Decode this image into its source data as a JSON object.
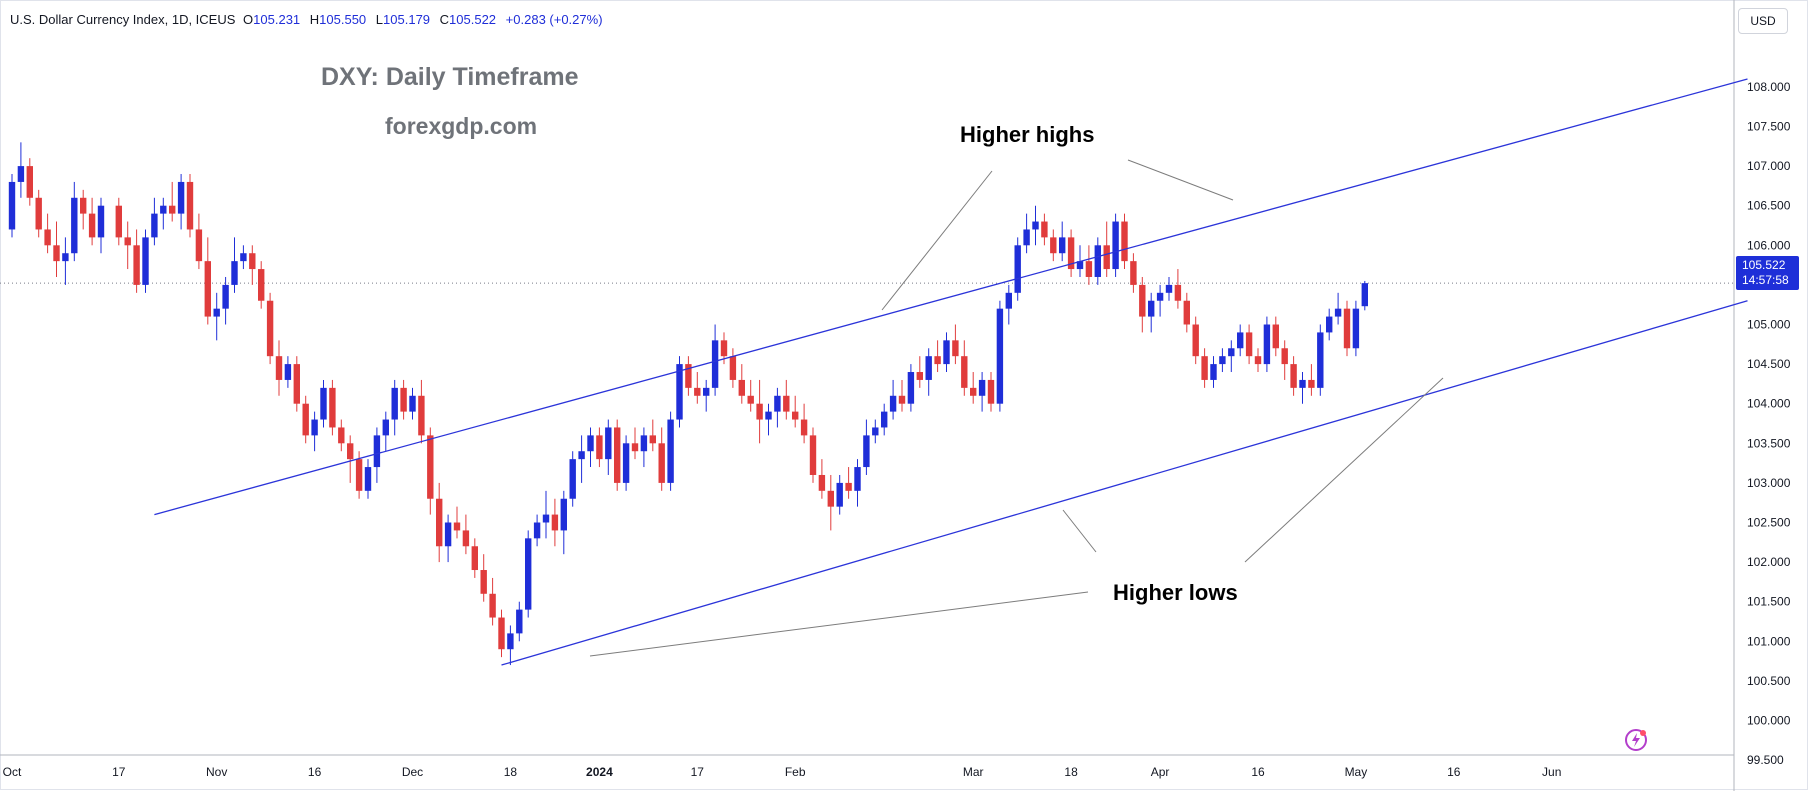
{
  "legend": {
    "symbol": "U.S. Dollar Currency Index, 1D, ICEUS",
    "open_key": "O",
    "open": "105.231",
    "high_key": "H",
    "high": "105.550",
    "low_key": "L",
    "low": "105.179",
    "close_key": "C",
    "close": "105.522",
    "change": "+0.283 (+0.27%)"
  },
  "currency": "USD",
  "watermark": {
    "title": "DXY: Daily Timeframe",
    "site": "forexgdp.com"
  },
  "annotations": {
    "higher_highs": "Higher highs",
    "higher_lows": "Higher lows"
  },
  "last_price": {
    "price": "105.522",
    "countdown": "14:57:58"
  },
  "icons": {
    "flash": "lightning-bolt-icon"
  },
  "colors": {
    "up": "#1f2ed8",
    "down": "#e03c3c",
    "trendline": "#2b34d9",
    "callout": "#7c7c7c",
    "grid": "#e0e3eb"
  },
  "chart_data": {
    "type": "candlestick",
    "symbol": "DXY",
    "timeframe": "1D",
    "ylim": [
      99.3,
      108.5
    ],
    "y_ticks": [
      "99.500",
      "100.000",
      "100.500",
      "101.000",
      "101.500",
      "102.000",
      "102.500",
      "103.000",
      "103.500",
      "104.000",
      "104.500",
      "105.000",
      "105.500",
      "106.000",
      "106.500",
      "107.000",
      "107.500",
      "108.000"
    ],
    "x_ticks": [
      {
        "label": "Oct",
        "index": 0
      },
      {
        "label": "17",
        "index": 12
      },
      {
        "label": "Nov",
        "index": 23
      },
      {
        "label": "16",
        "index": 34
      },
      {
        "label": "Dec",
        "index": 45
      },
      {
        "label": "18",
        "index": 56
      },
      {
        "label": "2024",
        "index": 66
      },
      {
        "label": "17",
        "index": 77
      },
      {
        "label": "Feb",
        "index": 88
      },
      {
        "label": "Mar",
        "index": 108
      },
      {
        "label": "18",
        "index": 119
      },
      {
        "label": "Apr",
        "index": 129
      },
      {
        "label": "16",
        "index": 140
      },
      {
        "label": "May",
        "index": 151
      },
      {
        "label": "16",
        "index": 162
      },
      {
        "label": "Jun",
        "index": 173
      }
    ],
    "n_slots": 195,
    "candles": [
      [
        106.2,
        106.9,
        106.1,
        106.8
      ],
      [
        106.8,
        107.3,
        106.6,
        107.0
      ],
      [
        107.0,
        107.1,
        106.5,
        106.6
      ],
      [
        106.6,
        106.7,
        106.1,
        106.2
      ],
      [
        106.2,
        106.4,
        105.9,
        106.0
      ],
      [
        106.0,
        106.3,
        105.6,
        105.8
      ],
      [
        105.8,
        106.1,
        105.5,
        105.9
      ],
      [
        105.9,
        106.8,
        105.8,
        106.6
      ],
      [
        106.6,
        106.7,
        106.2,
        106.4
      ],
      [
        106.4,
        106.6,
        106.0,
        106.1
      ],
      [
        106.1,
        106.6,
        105.9,
        106.5
      ],
      [
        106.5,
        106.6,
        106.0,
        106.1
      ],
      [
        106.1,
        106.3,
        105.7,
        106.0
      ],
      [
        106.0,
        106.2,
        105.4,
        105.5
      ],
      [
        105.5,
        106.2,
        105.4,
        106.1
      ],
      [
        106.1,
        106.6,
        106.0,
        106.4
      ],
      [
        106.4,
        106.6,
        106.2,
        106.5
      ],
      [
        106.5,
        106.8,
        106.3,
        106.4
      ],
      [
        106.4,
        106.9,
        106.2,
        106.8
      ],
      [
        106.8,
        106.9,
        106.1,
        106.2
      ],
      [
        106.2,
        106.4,
        105.7,
        105.8
      ],
      [
        105.8,
        106.1,
        105.0,
        105.1
      ],
      [
        105.1,
        105.4,
        104.8,
        105.2
      ],
      [
        105.2,
        105.6,
        105.0,
        105.5
      ],
      [
        105.5,
        106.1,
        105.4,
        105.8
      ],
      [
        105.8,
        106.0,
        105.7,
        105.9
      ],
      [
        105.9,
        106.0,
        105.5,
        105.7
      ],
      [
        105.7,
        105.8,
        105.2,
        105.3
      ],
      [
        105.3,
        105.4,
        104.5,
        104.6
      ],
      [
        104.6,
        104.8,
        104.1,
        104.3
      ],
      [
        104.3,
        104.6,
        104.2,
        104.5
      ],
      [
        104.5,
        104.6,
        103.9,
        104.0
      ],
      [
        104.0,
        104.1,
        103.5,
        103.6
      ],
      [
        103.6,
        103.9,
        103.4,
        103.8
      ],
      [
        103.8,
        104.3,
        103.7,
        104.2
      ],
      [
        104.2,
        104.3,
        103.6,
        103.7
      ],
      [
        103.7,
        103.8,
        103.4,
        103.5
      ],
      [
        103.5,
        103.6,
        103.0,
        103.3
      ],
      [
        103.3,
        103.4,
        102.8,
        102.9
      ],
      [
        102.9,
        103.3,
        102.8,
        103.2
      ],
      [
        103.2,
        103.7,
        103.0,
        103.6
      ],
      [
        103.6,
        103.9,
        103.4,
        103.8
      ],
      [
        103.8,
        104.3,
        103.6,
        104.2
      ],
      [
        104.2,
        104.3,
        103.8,
        103.9
      ],
      [
        103.9,
        104.2,
        103.8,
        104.1
      ],
      [
        104.1,
        104.3,
        103.5,
        103.6
      ],
      [
        103.6,
        103.7,
        102.6,
        102.8
      ],
      [
        102.8,
        103.0,
        102.0,
        102.2
      ],
      [
        102.2,
        102.6,
        102.0,
        102.5
      ],
      [
        102.5,
        102.7,
        102.3,
        102.4
      ],
      [
        102.4,
        102.6,
        102.1,
        102.2
      ],
      [
        102.2,
        102.3,
        101.8,
        101.9
      ],
      [
        101.9,
        102.1,
        101.5,
        101.6
      ],
      [
        101.6,
        101.8,
        101.2,
        101.3
      ],
      [
        101.3,
        101.4,
        100.8,
        100.9
      ],
      [
        100.9,
        101.2,
        100.7,
        101.1
      ],
      [
        101.1,
        101.5,
        101.0,
        101.4
      ],
      [
        101.4,
        102.4,
        101.3,
        102.3
      ],
      [
        102.3,
        102.6,
        102.2,
        102.5
      ],
      [
        102.5,
        102.9,
        102.3,
        102.6
      ],
      [
        102.6,
        102.8,
        102.2,
        102.4
      ],
      [
        102.4,
        102.9,
        102.1,
        102.8
      ],
      [
        102.8,
        103.4,
        102.7,
        103.3
      ],
      [
        103.3,
        103.6,
        103.0,
        103.4
      ],
      [
        103.4,
        103.7,
        103.2,
        103.6
      ],
      [
        103.6,
        103.7,
        103.2,
        103.3
      ],
      [
        103.3,
        103.8,
        103.1,
        103.7
      ],
      [
        103.7,
        103.8,
        102.9,
        103.0
      ],
      [
        103.0,
        103.6,
        102.9,
        103.5
      ],
      [
        103.5,
        103.7,
        103.3,
        103.4
      ],
      [
        103.4,
        103.7,
        103.2,
        103.6
      ],
      [
        103.6,
        103.8,
        103.4,
        103.5
      ],
      [
        103.5,
        103.7,
        102.9,
        103.0
      ],
      [
        103.0,
        103.9,
        102.9,
        103.8
      ],
      [
        103.8,
        104.6,
        103.7,
        104.5
      ],
      [
        104.5,
        104.6,
        104.1,
        104.2
      ],
      [
        104.2,
        104.4,
        104.0,
        104.1
      ],
      [
        104.1,
        104.3,
        103.9,
        104.2
      ],
      [
        104.2,
        105.0,
        104.1,
        104.8
      ],
      [
        104.8,
        104.9,
        104.5,
        104.6
      ],
      [
        104.6,
        104.7,
        104.2,
        104.3
      ],
      [
        104.3,
        104.5,
        104.0,
        104.1
      ],
      [
        104.1,
        104.3,
        103.9,
        104.0
      ],
      [
        104.0,
        104.3,
        103.5,
        103.8
      ],
      [
        103.8,
        104.0,
        103.6,
        103.9
      ],
      [
        103.9,
        104.2,
        103.7,
        104.1
      ],
      [
        104.1,
        104.3,
        103.8,
        103.9
      ],
      [
        103.9,
        104.1,
        103.7,
        103.8
      ],
      [
        103.8,
        104.0,
        103.5,
        103.6
      ],
      [
        103.6,
        103.7,
        103.0,
        103.1
      ],
      [
        103.1,
        103.3,
        102.8,
        102.9
      ],
      [
        102.9,
        103.1,
        102.4,
        102.7
      ],
      [
        102.7,
        103.1,
        102.6,
        103.0
      ],
      [
        103.0,
        103.2,
        102.8,
        102.9
      ],
      [
        102.9,
        103.3,
        102.7,
        103.2
      ],
      [
        103.2,
        103.8,
        103.1,
        103.6
      ],
      [
        103.6,
        103.8,
        103.5,
        103.7
      ],
      [
        103.7,
        104.0,
        103.6,
        103.9
      ],
      [
        103.9,
        104.3,
        103.8,
        104.1
      ],
      [
        104.1,
        104.3,
        103.9,
        104.0
      ],
      [
        104.0,
        104.5,
        103.9,
        104.4
      ],
      [
        104.4,
        104.6,
        104.2,
        104.3
      ],
      [
        104.3,
        104.7,
        104.1,
        104.6
      ],
      [
        104.6,
        104.8,
        104.4,
        104.5
      ],
      [
        104.5,
        104.9,
        104.4,
        104.8
      ],
      [
        104.8,
        105.0,
        104.5,
        104.6
      ],
      [
        104.6,
        104.8,
        104.1,
        104.2
      ],
      [
        104.2,
        104.4,
        104.0,
        104.1
      ],
      [
        104.1,
        104.4,
        103.9,
        104.3
      ],
      [
        104.3,
        104.4,
        103.9,
        104.0
      ],
      [
        104.0,
        105.3,
        103.9,
        105.2
      ],
      [
        105.2,
        105.5,
        105.0,
        105.4
      ],
      [
        105.4,
        106.1,
        105.3,
        106.0
      ],
      [
        106.0,
        106.4,
        105.9,
        106.2
      ],
      [
        106.2,
        106.5,
        106.0,
        106.3
      ],
      [
        106.3,
        106.4,
        106.0,
        106.1
      ],
      [
        106.1,
        106.2,
        105.8,
        105.9
      ],
      [
        105.9,
        106.3,
        105.8,
        106.1
      ],
      [
        106.1,
        106.2,
        105.6,
        105.7
      ],
      [
        105.7,
        106.0,
        105.6,
        105.8
      ],
      [
        105.8,
        106.0,
        105.5,
        105.6
      ],
      [
        105.6,
        106.1,
        105.5,
        106.0
      ],
      [
        106.0,
        106.3,
        105.6,
        105.7
      ],
      [
        105.7,
        106.4,
        105.6,
        106.3
      ],
      [
        106.3,
        106.4,
        105.7,
        105.8
      ],
      [
        105.8,
        105.9,
        105.4,
        105.5
      ],
      [
        105.5,
        105.6,
        104.9,
        105.1
      ],
      [
        105.1,
        105.4,
        104.9,
        105.3
      ],
      [
        105.3,
        105.5,
        105.1,
        105.4
      ],
      [
        105.4,
        105.6,
        105.3,
        105.5
      ],
      [
        105.5,
        105.7,
        105.2,
        105.3
      ],
      [
        105.3,
        105.4,
        104.9,
        105.0
      ],
      [
        105.0,
        105.1,
        104.5,
        104.6
      ],
      [
        104.6,
        104.7,
        104.2,
        104.3
      ],
      [
        104.3,
        104.6,
        104.2,
        104.5
      ],
      [
        104.5,
        104.7,
        104.4,
        104.6
      ],
      [
        104.6,
        104.8,
        104.4,
        104.7
      ],
      [
        104.7,
        105.0,
        104.6,
        104.9
      ],
      [
        104.9,
        105.0,
        104.5,
        104.6
      ],
      [
        104.6,
        104.7,
        104.4,
        104.5
      ],
      [
        104.5,
        105.1,
        104.4,
        105.0
      ],
      [
        105.0,
        105.1,
        104.6,
        104.7
      ],
      [
        104.7,
        104.8,
        104.3,
        104.5
      ],
      [
        104.5,
        104.6,
        104.1,
        104.2
      ],
      [
        104.2,
        104.4,
        104.0,
        104.3
      ],
      [
        104.3,
        104.5,
        104.1,
        104.2
      ],
      [
        104.2,
        105.0,
        104.1,
        104.9
      ],
      [
        104.9,
        105.2,
        104.8,
        105.1
      ],
      [
        105.1,
        105.4,
        105.0,
        105.2
      ],
      [
        105.2,
        105.3,
        104.6,
        104.7
      ],
      [
        104.7,
        105.3,
        104.6,
        105.2
      ],
      [
        105.231,
        105.55,
        105.179,
        105.522
      ]
    ],
    "slot_map_note": "candle i is drawn at slot (i < 11 ? i : i + 1)",
    "trendlines": [
      {
        "from": [
          16,
          102.6
        ],
        "to": [
          195,
          108.1
        ],
        "label": "upper channel"
      },
      {
        "from": [
          55,
          100.7
        ],
        "to": [
          195,
          105.3
        ],
        "label": "lower channel"
      }
    ],
    "annotations": [
      "Higher highs",
      "Higher lows"
    ],
    "last_price": 105.522
  }
}
